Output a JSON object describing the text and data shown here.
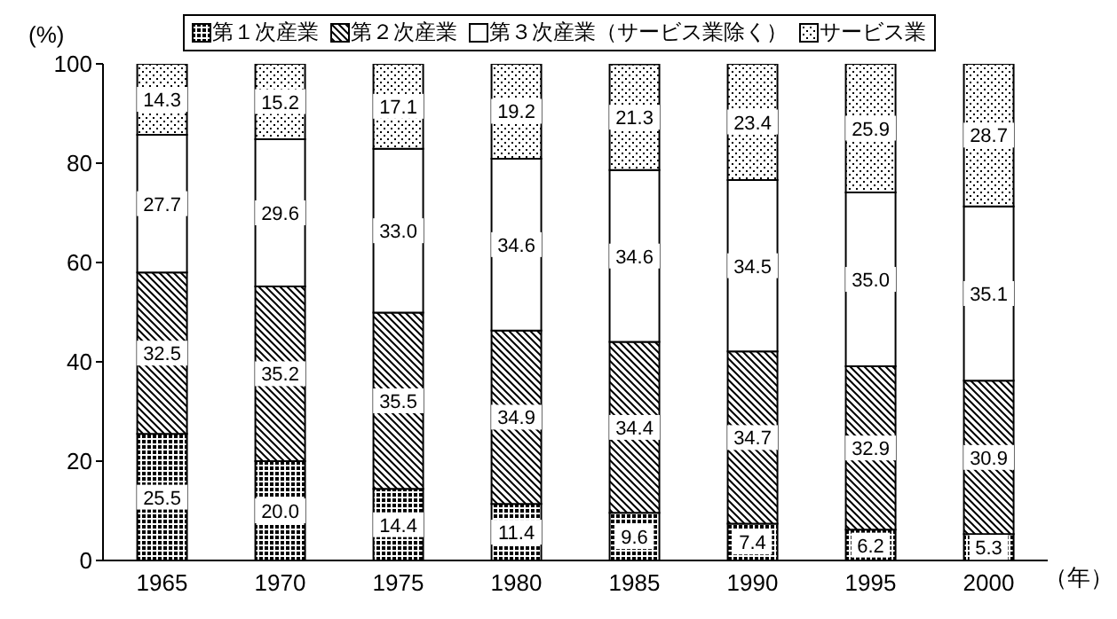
{
  "chart_data": {
    "type": "bar",
    "stacked": true,
    "xlabel": "（年）",
    "ylabel": "(%)",
    "categories": [
      "1965",
      "1970",
      "1975",
      "1980",
      "1985",
      "1990",
      "1995",
      "2000"
    ],
    "series": [
      {
        "name": "第１次産業",
        "color": "#000000",
        "values": [
          25.5,
          20.0,
          14.4,
          11.4,
          9.6,
          7.4,
          6.2,
          5.3
        ],
        "value_labels": [
          "25.5",
          "20.0",
          "14.4",
          "11.4",
          "9.6",
          "7.4",
          "6.2",
          "5.3"
        ]
      },
      {
        "name": "第２次産業",
        "color": "#000000",
        "values": [
          32.5,
          35.2,
          35.5,
          34.9,
          34.4,
          34.7,
          32.9,
          30.9
        ],
        "value_labels": [
          "32.5",
          "35.2",
          "35.5",
          "34.9",
          "34.4",
          "34.7",
          "32.9",
          "30.9"
        ]
      },
      {
        "name": "第３次産業（サービス業除く）",
        "color": "#ffffff",
        "values": [
          27.7,
          29.6,
          33.0,
          34.6,
          34.6,
          34.5,
          35.0,
          35.1
        ],
        "value_labels": [
          "27.7",
          "29.6",
          "33.0",
          "34.6",
          "34.6",
          "34.5",
          "35.0",
          "35.1"
        ]
      },
      {
        "name": "サービス業",
        "color": "#000000",
        "values": [
          14.3,
          15.2,
          17.1,
          19.2,
          21.3,
          23.4,
          25.9,
          28.7
        ],
        "value_labels": [
          "14.3",
          "15.2",
          "17.1",
          "19.2",
          "21.3",
          "23.4",
          "25.9",
          "28.7"
        ]
      }
    ],
    "ylim": [
      0,
      100
    ],
    "yticks": [
      0,
      20,
      40,
      60,
      80,
      100
    ],
    "grid": false,
    "legend": "top"
  }
}
